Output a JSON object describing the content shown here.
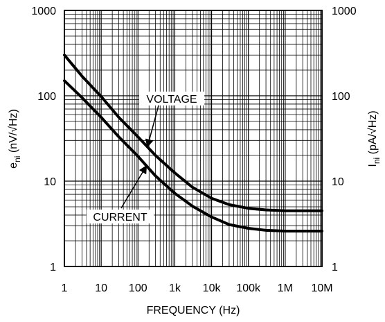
{
  "chart_data": {
    "type": "line",
    "xscale": "log",
    "yscale": "log",
    "xlim": [
      1,
      10000000
    ],
    "ylim": [
      1,
      1000
    ],
    "x_tick_values": [
      1,
      10,
      100,
      1000,
      10000,
      100000,
      1000000,
      10000000
    ],
    "x_tick_labels": [
      "1",
      "10",
      "100",
      "1k",
      "10k",
      "100k",
      "1M",
      "10M"
    ],
    "y_tick_values": [
      1,
      10,
      100,
      1000
    ],
    "y_tick_labels": [
      "1",
      "10",
      "100",
      "1000"
    ],
    "y2_tick_labels": [
      "1",
      "10",
      "100",
      "1000"
    ],
    "xlabel": "FREQUENCY (Hz)",
    "ylabel_main": "e",
    "ylabel_sub": "ni",
    "ylabel_rest": " (nV/√Hz)",
    "y2label_main": "I",
    "y2label_sub": "ni",
    "y2label_rest": " (pA/√Hz)",
    "grid": true,
    "series": [
      {
        "name": "VOLTAGE",
        "x": [
          1,
          3,
          10,
          30,
          100,
          300,
          1000,
          3000,
          10000,
          30000,
          100000,
          300000,
          1000000,
          3000000,
          10000000
        ],
        "values": [
          300,
          170,
          98,
          56,
          33,
          20,
          12.5,
          8.5,
          6.3,
          5.3,
          4.8,
          4.6,
          4.5,
          4.5,
          4.5
        ]
      },
      {
        "name": "CURRENT",
        "x": [
          1,
          3,
          10,
          30,
          100,
          300,
          1000,
          3000,
          10000,
          30000,
          100000,
          300000,
          1000000,
          3000000,
          10000000
        ],
        "values": [
          150,
          95,
          56,
          33,
          19.5,
          11.5,
          7.2,
          5.1,
          3.8,
          3.1,
          2.8,
          2.65,
          2.6,
          2.6,
          2.6
        ]
      }
    ],
    "annotations": [
      {
        "text": "VOLTAGE",
        "series": "VOLTAGE"
      },
      {
        "text": "CURRENT",
        "series": "CURRENT"
      }
    ]
  }
}
